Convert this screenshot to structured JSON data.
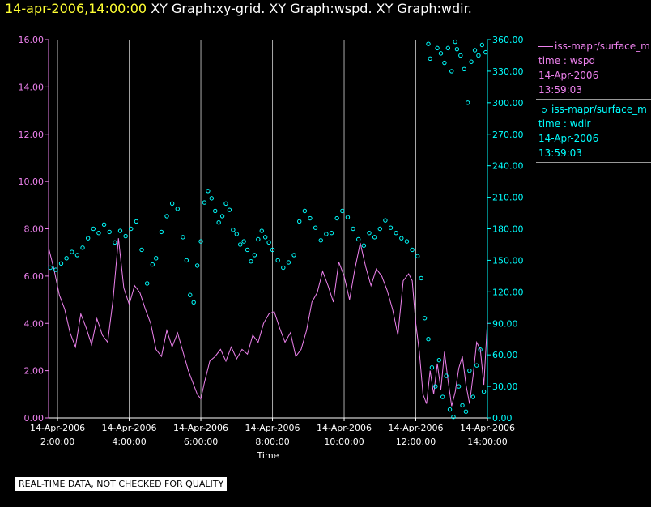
{
  "title": {
    "timestamp": "14-apr-2006,14:00:00",
    "graphs": "XY Graph:xy-grid.  XY Graph:wspd.  XY Graph:wdir."
  },
  "legend": {
    "series1": {
      "name": "iss-mapr/surface_m",
      "axes": "time : wspd",
      "date": "14-Apr-2006",
      "time": "13:59:03"
    },
    "series2": {
      "name": "iss-mapr/surface_m",
      "axes": "time : wdir",
      "date": "14-Apr-2006",
      "time": "13:59:03"
    }
  },
  "disclaimer": "REAL-TIME DATA, NOT CHECKED FOR QUALITY",
  "colors": {
    "wspd": "#ee82ee",
    "wdir": "#00ffff",
    "grid": "#aaaaaa",
    "axis_left": "#ee82ee",
    "axis_right": "#00ffff",
    "title_timestamp": "#ffff33",
    "background": "#000000"
  },
  "chart_data": {
    "type": "line",
    "xlabel": "Time",
    "x_range_hours": [
      1.75,
      14.0
    ],
    "x_ticks": [
      {
        "h": 2,
        "date": "14-Apr-2006",
        "time": "2:00:00"
      },
      {
        "h": 4,
        "date": "14-Apr-2006",
        "time": "4:00:00"
      },
      {
        "h": 6,
        "date": "14-Apr-2006",
        "time": "6:00:00"
      },
      {
        "h": 8,
        "date": "14-Apr-2006",
        "time": "8:00:00"
      },
      {
        "h": 10,
        "date": "14-Apr-2006",
        "time": "10:00:00"
      },
      {
        "h": 12,
        "date": "14-Apr-2006",
        "time": "12:00:00"
      },
      {
        "h": 14,
        "date": "14-Apr-2006",
        "time": "14:00:00"
      }
    ],
    "left_axis": {
      "name": "wspd",
      "ylim": [
        0,
        16
      ],
      "ticks": [
        "0.00",
        "2.00",
        "4.00",
        "6.00",
        "8.00",
        "10.00",
        "12.00",
        "14.00",
        "16.00"
      ]
    },
    "right_axis": {
      "name": "wdir",
      "ylim": [
        0,
        360
      ],
      "ticks": [
        "0.00",
        "30.00",
        "60.00",
        "90.00",
        "120.00",
        "150.00",
        "180.00",
        "210.00",
        "240.00",
        "270.00",
        "300.00",
        "330.00",
        "360.00"
      ]
    },
    "series": [
      {
        "name": "wspd",
        "style": "line",
        "axis": "left",
        "points": [
          [
            1.75,
            7.2
          ],
          [
            1.9,
            6.3
          ],
          [
            2.05,
            5.2
          ],
          [
            2.2,
            4.6
          ],
          [
            2.35,
            3.6
          ],
          [
            2.5,
            3.0
          ],
          [
            2.65,
            4.4
          ],
          [
            2.8,
            3.8
          ],
          [
            2.95,
            3.1
          ],
          [
            3.1,
            4.2
          ],
          [
            3.25,
            3.5
          ],
          [
            3.4,
            3.2
          ],
          [
            3.55,
            5.0
          ],
          [
            3.7,
            7.6
          ],
          [
            3.85,
            5.5
          ],
          [
            4.0,
            4.8
          ],
          [
            4.15,
            5.6
          ],
          [
            4.3,
            5.3
          ],
          [
            4.45,
            4.6
          ],
          [
            4.6,
            4.0
          ],
          [
            4.75,
            2.9
          ],
          [
            4.9,
            2.6
          ],
          [
            5.05,
            3.7
          ],
          [
            5.2,
            3.0
          ],
          [
            5.35,
            3.6
          ],
          [
            5.5,
            2.8
          ],
          [
            5.65,
            2.0
          ],
          [
            5.75,
            1.6
          ],
          [
            5.9,
            1.0
          ],
          [
            6.0,
            0.8
          ],
          [
            6.1,
            1.5
          ],
          [
            6.25,
            2.4
          ],
          [
            6.4,
            2.6
          ],
          [
            6.55,
            2.9
          ],
          [
            6.7,
            2.4
          ],
          [
            6.85,
            3.0
          ],
          [
            7.0,
            2.5
          ],
          [
            7.15,
            2.9
          ],
          [
            7.3,
            2.7
          ],
          [
            7.45,
            3.5
          ],
          [
            7.6,
            3.2
          ],
          [
            7.75,
            4.0
          ],
          [
            7.9,
            4.4
          ],
          [
            8.05,
            4.5
          ],
          [
            8.2,
            3.8
          ],
          [
            8.35,
            3.2
          ],
          [
            8.5,
            3.6
          ],
          [
            8.65,
            2.6
          ],
          [
            8.8,
            2.9
          ],
          [
            8.95,
            3.7
          ],
          [
            9.1,
            4.9
          ],
          [
            9.25,
            5.3
          ],
          [
            9.4,
            6.2
          ],
          [
            9.55,
            5.6
          ],
          [
            9.7,
            4.9
          ],
          [
            9.85,
            6.6
          ],
          [
            10.0,
            6.0
          ],
          [
            10.15,
            5.0
          ],
          [
            10.3,
            6.3
          ],
          [
            10.45,
            7.4
          ],
          [
            10.6,
            6.4
          ],
          [
            10.75,
            5.6
          ],
          [
            10.9,
            6.3
          ],
          [
            11.05,
            6.0
          ],
          [
            11.2,
            5.4
          ],
          [
            11.35,
            4.6
          ],
          [
            11.5,
            3.5
          ],
          [
            11.65,
            5.8
          ],
          [
            11.8,
            6.1
          ],
          [
            11.9,
            5.8
          ],
          [
            12.0,
            4.0
          ],
          [
            12.1,
            2.8
          ],
          [
            12.2,
            1.0
          ],
          [
            12.3,
            0.6
          ],
          [
            12.4,
            2.0
          ],
          [
            12.5,
            1.0
          ],
          [
            12.6,
            2.3
          ],
          [
            12.7,
            1.2
          ],
          [
            12.8,
            2.8
          ],
          [
            12.9,
            1.6
          ],
          [
            13.0,
            0.5
          ],
          [
            13.1,
            1.1
          ],
          [
            13.2,
            2.1
          ],
          [
            13.3,
            2.6
          ],
          [
            13.4,
            1.4
          ],
          [
            13.5,
            0.6
          ],
          [
            13.6,
            1.8
          ],
          [
            13.7,
            3.2
          ],
          [
            13.8,
            2.9
          ],
          [
            13.9,
            1.4
          ],
          [
            14.0,
            4.1
          ]
        ]
      },
      {
        "name": "wdir",
        "style": "scatter",
        "axis": "right",
        "points": [
          [
            1.8,
            143
          ],
          [
            1.95,
            141
          ],
          [
            2.1,
            147
          ],
          [
            2.25,
            152
          ],
          [
            2.4,
            158
          ],
          [
            2.55,
            155
          ],
          [
            2.7,
            162
          ],
          [
            2.85,
            171
          ],
          [
            3.0,
            180
          ],
          [
            3.15,
            176
          ],
          [
            3.3,
            184
          ],
          [
            3.45,
            177
          ],
          [
            3.6,
            167
          ],
          [
            3.75,
            178
          ],
          [
            3.9,
            173
          ],
          [
            4.05,
            180
          ],
          [
            4.2,
            187
          ],
          [
            4.35,
            160
          ],
          [
            4.5,
            128
          ],
          [
            4.65,
            146
          ],
          [
            4.75,
            152
          ],
          [
            4.9,
            177
          ],
          [
            5.05,
            192
          ],
          [
            5.2,
            204
          ],
          [
            5.35,
            199
          ],
          [
            5.5,
            172
          ],
          [
            5.6,
            150
          ],
          [
            5.7,
            117
          ],
          [
            5.8,
            110
          ],
          [
            5.9,
            145
          ],
          [
            6.0,
            168
          ],
          [
            6.1,
            205
          ],
          [
            6.2,
            216
          ],
          [
            6.3,
            209
          ],
          [
            6.4,
            197
          ],
          [
            6.5,
            186
          ],
          [
            6.6,
            192
          ],
          [
            6.7,
            204
          ],
          [
            6.8,
            198
          ],
          [
            6.9,
            179
          ],
          [
            7.0,
            175
          ],
          [
            7.1,
            165
          ],
          [
            7.2,
            168
          ],
          [
            7.3,
            160
          ],
          [
            7.4,
            149
          ],
          [
            7.5,
            155
          ],
          [
            7.6,
            170
          ],
          [
            7.7,
            178
          ],
          [
            7.8,
            172
          ],
          [
            7.9,
            167
          ],
          [
            8.0,
            160
          ],
          [
            8.15,
            150
          ],
          [
            8.3,
            143
          ],
          [
            8.45,
            148
          ],
          [
            8.6,
            155
          ],
          [
            8.75,
            187
          ],
          [
            8.9,
            197
          ],
          [
            9.05,
            190
          ],
          [
            9.2,
            181
          ],
          [
            9.35,
            169
          ],
          [
            9.5,
            175
          ],
          [
            9.65,
            176
          ],
          [
            9.8,
            190
          ],
          [
            9.95,
            197
          ],
          [
            10.1,
            191
          ],
          [
            10.25,
            180
          ],
          [
            10.4,
            170
          ],
          [
            10.55,
            164
          ],
          [
            10.7,
            176
          ],
          [
            10.85,
            172
          ],
          [
            11.0,
            180
          ],
          [
            11.15,
            188
          ],
          [
            11.3,
            181
          ],
          [
            11.45,
            176
          ],
          [
            11.6,
            171
          ],
          [
            11.75,
            168
          ],
          [
            11.9,
            160
          ],
          [
            12.05,
            154
          ],
          [
            12.15,
            133
          ],
          [
            12.25,
            95
          ],
          [
            12.35,
            75
          ],
          [
            12.45,
            48
          ],
          [
            12.55,
            30
          ],
          [
            12.65,
            55
          ],
          [
            12.75,
            20
          ],
          [
            12.85,
            40
          ],
          [
            12.95,
            8
          ],
          [
            13.05,
            1
          ],
          [
            13.1,
            358
          ],
          [
            13.15,
            351
          ],
          [
            13.25,
            345
          ],
          [
            13.35,
            332
          ],
          [
            13.45,
            300
          ],
          [
            13.55,
            339
          ],
          [
            13.65,
            350
          ],
          [
            13.75,
            345
          ],
          [
            13.85,
            355
          ],
          [
            13.95,
            348
          ],
          [
            12.35,
            356
          ],
          [
            12.4,
            342
          ],
          [
            12.6,
            352
          ],
          [
            12.7,
            347
          ],
          [
            12.8,
            338
          ],
          [
            12.9,
            352
          ],
          [
            13.0,
            330
          ],
          [
            13.2,
            30
          ],
          [
            13.3,
            12
          ],
          [
            13.4,
            6
          ],
          [
            13.5,
            45
          ],
          [
            13.6,
            20
          ],
          [
            13.7,
            50
          ],
          [
            13.8,
            65
          ],
          [
            13.9,
            25
          ]
        ]
      }
    ]
  }
}
